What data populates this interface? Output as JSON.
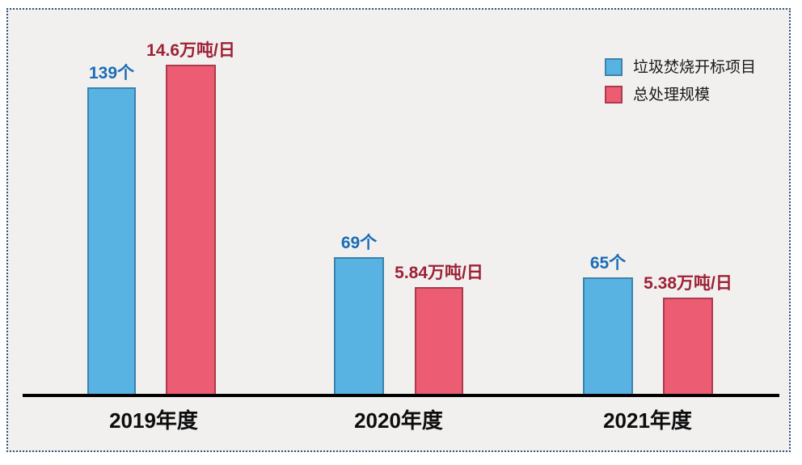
{
  "page": {
    "background": "#ffffff",
    "frame_background": "#f1f0ef",
    "frame_border_color": "#2e5380",
    "axis_color": "#000000"
  },
  "chart_data": {
    "type": "bar",
    "title": "",
    "categories": [
      "2019年度",
      "2020年度",
      "2021年度"
    ],
    "series": [
      {
        "key": "bid-projects",
        "name": "垃圾焚烧开标项目",
        "values": [
          139,
          69,
          65
        ],
        "unit": "个",
        "labels": [
          "139个",
          "69个",
          "65个"
        ],
        "fill": "#58b3e2",
        "border": "#3b83ad",
        "label_color": "#1b6cb5"
      },
      {
        "key": "total-scale",
        "name": "总处理规模",
        "values": [
          14.6,
          5.84,
          5.38
        ],
        "unit": "万吨/日",
        "labels": [
          "14.6万吨/日",
          "5.84万吨/日",
          "5.38万吨/日"
        ],
        "fill": "#ec5c72",
        "border": "#ad3a4d",
        "label_color": "#9e2135"
      }
    ],
    "legend": {
      "position": "top-right"
    },
    "axes": {
      "x_baseline_visible": true,
      "y_axis_visible": false,
      "gridlines": false
    },
    "layout": {
      "axis": {
        "y": 487,
        "x1": 28,
        "x2": 964,
        "thickness": 4
      },
      "bar_bottom_y": 489,
      "label_gap": 6,
      "category_label_top": 506,
      "category_centers": [
        190,
        493,
        801
      ],
      "bars": [
        {
          "series": 0,
          "cat": 0,
          "x": 108,
          "w": 60,
          "top": 108
        },
        {
          "series": 1,
          "cat": 0,
          "x": 205,
          "w": 62,
          "top": 80
        },
        {
          "series": 0,
          "cat": 1,
          "x": 413,
          "w": 62,
          "top": 318
        },
        {
          "series": 1,
          "cat": 1,
          "x": 513,
          "w": 60,
          "top": 355
        },
        {
          "series": 0,
          "cat": 2,
          "x": 721,
          "w": 62,
          "top": 343
        },
        {
          "series": 1,
          "cat": 2,
          "x": 820,
          "w": 62,
          "top": 368
        }
      ]
    }
  }
}
